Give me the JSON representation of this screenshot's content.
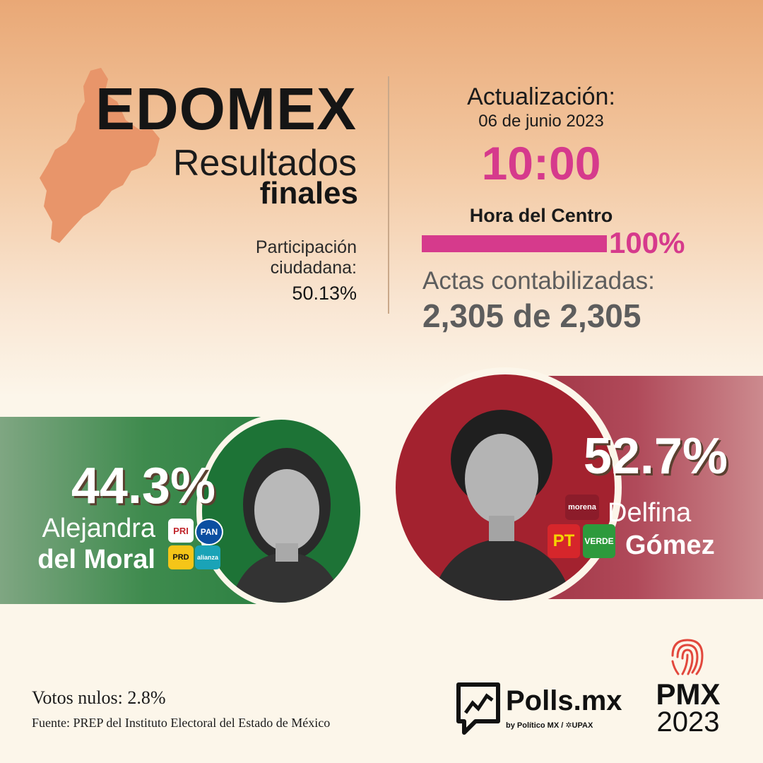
{
  "header": {
    "state": "EDOMEX",
    "subtitle_line1": "Resultados",
    "subtitle_line2": "finales",
    "participation_label": "Participación ciudadana:",
    "participation_value": "50.13%"
  },
  "update": {
    "label": "Actualización:",
    "date": "06 de junio 2023",
    "time": "10:00",
    "timezone": "Hora del Centro",
    "progress_percent": "100%",
    "progress_fraction": 1.0,
    "actas_label": "Actas contabilizadas:",
    "actas_value": "2,305 de 2,305"
  },
  "candidates": [
    {
      "percent": "44.3%",
      "name_line1": "Alejandra",
      "name_line2": "del Moral",
      "party_logos": [
        "PRI",
        "PAN",
        "PRD",
        "alianza"
      ],
      "color": "#1f7a3a"
    },
    {
      "percent": "52.7%",
      "name_line1": "Delfina",
      "name_line2": "Gómez",
      "party_logos": [
        "morena",
        "PT",
        "VERDE"
      ],
      "color": "#a3222f"
    }
  ],
  "footer": {
    "votos_nulos": "Votos nulos: 2.8%",
    "fuente": "Fuente: PREP del Instituto Electoral del Estado de México"
  },
  "brands": {
    "polls_name": "Polls.mx",
    "polls_by": "by Político MX / ✲UPAX",
    "pmx_name": "PMX",
    "pmx_year": "2023"
  },
  "colors": {
    "accent_pink": "#d63a8c",
    "map_orange": "#e8956a"
  },
  "icons": {
    "map": "edomex-map-icon",
    "polls": "polls-logo-icon",
    "pmx": "fingerprint-icon"
  }
}
